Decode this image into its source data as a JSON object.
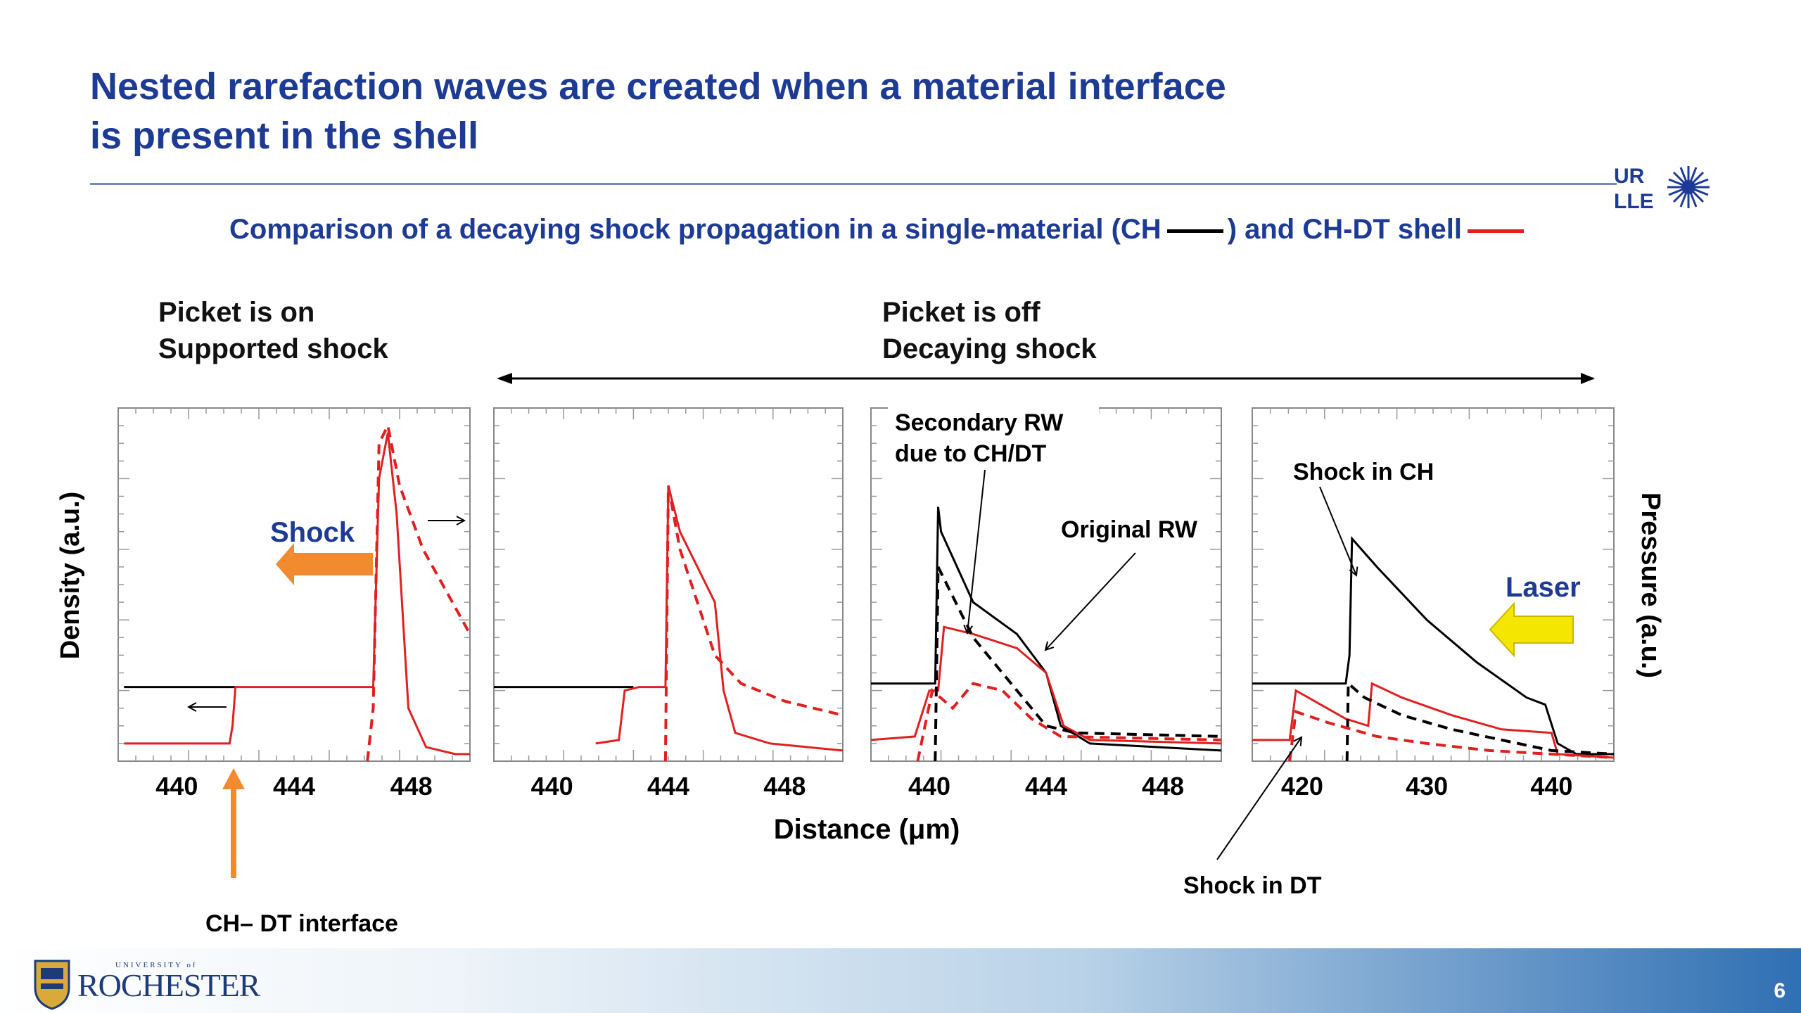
{
  "slide": {
    "title_line1": "Nested rarefaction waves are created when a material interface",
    "title_line2": "is present in the shell",
    "subtitle_part1": "Comparison of a decaying shock propagation in a single-material (CH",
    "subtitle_part2": ") and CH-DT shell",
    "section_on_line1": "Picket is on",
    "section_on_line2": "Supported shock",
    "section_off_line1": "Picket is off",
    "section_off_line2": "Decaying shock",
    "y_label_left": "Density (a.u.)",
    "y_label_right": "Pressure (a.u.)",
    "x_label": "Distance (μm)",
    "page_number": "6",
    "logo_urlle": [
      "UR",
      "LLE"
    ],
    "logo_rochester": "ROCHESTER",
    "logo_rochester_small": "UNIVERSITY of",
    "colors": {
      "title": "#1d3b94",
      "ch": "#000000",
      "chdt": "#e02020",
      "shock_arrow": "#f28a30",
      "laser_arrow": "#f5e600"
    }
  },
  "annotations": {
    "shock": "Shock",
    "laser": "Laser",
    "secondary_rw_1": "Secondary RW",
    "secondary_rw_2": "due to CH/DT",
    "original_rw": "Original RW",
    "shock_in_ch": "Shock in CH",
    "shock_in_dt": "Shock in DT",
    "interface": "CH– DT interface"
  },
  "chart_data": [
    {
      "type": "line",
      "panel": "Picket on – supported shock",
      "xlim": [
        438,
        450
      ],
      "ylim": [
        0,
        1
      ],
      "x_ticks": [
        440,
        444,
        448
      ],
      "series": [
        {
          "name": "CH",
          "style": "solid",
          "color": "#000000",
          "x": [
            438.2,
            442
          ],
          "y": [
            0.21,
            0.21
          ]
        },
        {
          "name": "CH-DT",
          "style": "solid",
          "color": "#e02020",
          "x": [
            438.2,
            441.8,
            441.9,
            442.0,
            446.7,
            446.9,
            447.2,
            447.5,
            447.9,
            448.5,
            449.5,
            450
          ],
          "y": [
            0.05,
            0.05,
            0.1,
            0.21,
            0.21,
            0.8,
            0.93,
            0.7,
            0.15,
            0.04,
            0.02,
            0.02
          ]
        },
        {
          "name": "CH-DT pressure",
          "style": "dashed",
          "color": "#e02020",
          "x": [
            446.5,
            446.7,
            446.9,
            447.2,
            447.6,
            448.4,
            449.2,
            450
          ],
          "y": [
            0,
            0.15,
            0.9,
            0.95,
            0.78,
            0.6,
            0.48,
            0.36
          ]
        }
      ]
    },
    {
      "type": "line",
      "panel": "Picket off – t1",
      "xlim": [
        438,
        450
      ],
      "ylim": [
        0,
        1
      ],
      "x_ticks": [
        440,
        444,
        448
      ],
      "series": [
        {
          "name": "CH",
          "style": "solid",
          "color": "#000000",
          "x": [
            438,
            442.8
          ],
          "y": [
            0.21,
            0.21
          ]
        },
        {
          "name": "CH-DT",
          "style": "solid",
          "color": "#e02020",
          "x": [
            441.5,
            442.3,
            442.5,
            443.0,
            443.9,
            444.0,
            444.4,
            445.0,
            445.6,
            445.9,
            446.3,
            447.5,
            450
          ],
          "y": [
            0.05,
            0.06,
            0.2,
            0.21,
            0.21,
            0.78,
            0.65,
            0.55,
            0.45,
            0.2,
            0.08,
            0.05,
            0.03
          ]
        },
        {
          "name": "CH-DT pressure",
          "style": "dashed",
          "color": "#e02020",
          "x": [
            443.9,
            444.0,
            444.4,
            445.0,
            445.6,
            446.5,
            448,
            450
          ],
          "y": [
            0,
            0.78,
            0.6,
            0.45,
            0.3,
            0.22,
            0.17,
            0.13
          ]
        }
      ]
    },
    {
      "type": "line",
      "panel": "Picket off – t2",
      "xlim": [
        438,
        450
      ],
      "ylim": [
        0,
        1
      ],
      "x_ticks": [
        440,
        444,
        448
      ],
      "series": [
        {
          "name": "CH",
          "style": "solid",
          "color": "#000000",
          "x": [
            438,
            440.2,
            440.3,
            440.4,
            441.5,
            443.0,
            444.0,
            444.5,
            445.5,
            450
          ],
          "y": [
            0.22,
            0.22,
            0.72,
            0.65,
            0.45,
            0.36,
            0.25,
            0.1,
            0.05,
            0.03
          ]
        },
        {
          "name": "CH-DT",
          "style": "solid",
          "color": "#e02020",
          "x": [
            438,
            439.5,
            440.0,
            440.3,
            440.5,
            441.5,
            443.0,
            444.0,
            444.6,
            445.5,
            450
          ],
          "y": [
            0.06,
            0.07,
            0.2,
            0.2,
            0.38,
            0.36,
            0.32,
            0.25,
            0.1,
            0.06,
            0.05
          ]
        },
        {
          "name": "CH pressure",
          "style": "dashed",
          "color": "#000000",
          "x": [
            440.2,
            440.3,
            441.5,
            443.0,
            444.0,
            445.0,
            450
          ],
          "y": [
            0,
            0.55,
            0.35,
            0.2,
            0.1,
            0.08,
            0.07
          ]
        },
        {
          "name": "CH-DT pressure",
          "style": "dashed",
          "color": "#e02020",
          "x": [
            439.6,
            440.1,
            440.8,
            441.5,
            442.5,
            443.5,
            444.5,
            450
          ],
          "y": [
            0,
            0.2,
            0.15,
            0.22,
            0.2,
            0.12,
            0.07,
            0.06
          ]
        }
      ]
    },
    {
      "type": "line",
      "panel": "Picket off – t3",
      "xlim": [
        416,
        445
      ],
      "ylim": [
        0,
        1
      ],
      "x_ticks": [
        420,
        430,
        440
      ],
      "series": [
        {
          "name": "CH",
          "style": "solid",
          "color": "#000000",
          "x": [
            416,
            423.5,
            423.8,
            424.0,
            426,
            430,
            434,
            438,
            439.5,
            440.5,
            442,
            445
          ],
          "y": [
            0.22,
            0.22,
            0.3,
            0.63,
            0.55,
            0.4,
            0.28,
            0.18,
            0.16,
            0.05,
            0.02,
            0.02
          ]
        },
        {
          "name": "CH-DT",
          "style": "solid",
          "color": "#e02020",
          "x": [
            416,
            419.0,
            419.5,
            421,
            423.5,
            425.3,
            425.6,
            428,
            432,
            436,
            440,
            440.5,
            445
          ],
          "y": [
            0.06,
            0.06,
            0.2,
            0.17,
            0.12,
            0.1,
            0.22,
            0.18,
            0.13,
            0.09,
            0.08,
            0.02,
            0.01
          ]
        },
        {
          "name": "CH pressure",
          "style": "dashed",
          "color": "#000000",
          "x": [
            423.6,
            423.7,
            425,
            428,
            432,
            436,
            440,
            445
          ],
          "y": [
            0,
            0.22,
            0.18,
            0.13,
            0.09,
            0.06,
            0.03,
            0.02
          ]
        },
        {
          "name": "CH-DT pressure",
          "style": "dashed",
          "color": "#e02020",
          "x": [
            419.0,
            419.5,
            422,
            426,
            430,
            435,
            440,
            445
          ],
          "y": [
            0,
            0.14,
            0.11,
            0.07,
            0.05,
            0.03,
            0.02,
            0.01
          ]
        }
      ]
    }
  ]
}
